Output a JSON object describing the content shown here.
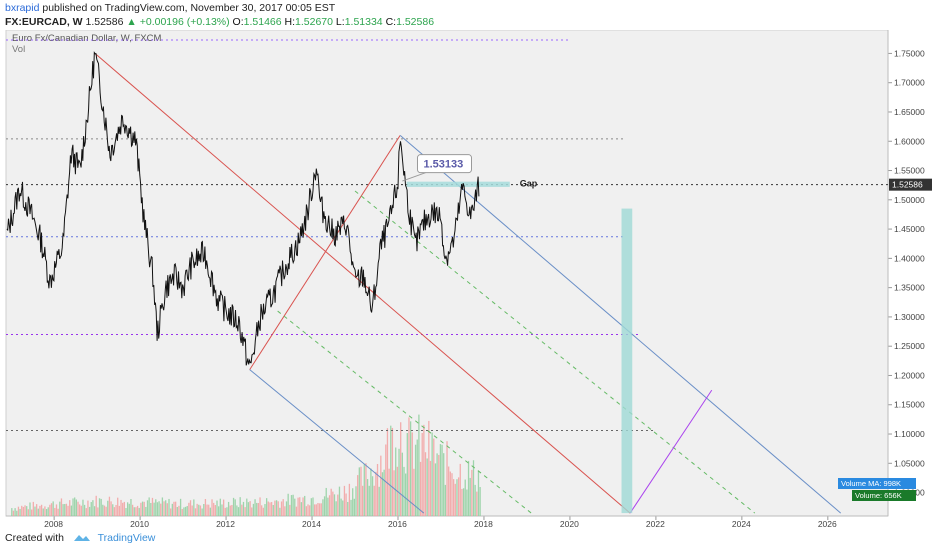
{
  "header": {
    "author": "bxrapid",
    "published": "published on TradingView.com, November 30, 2017 00:05 EST",
    "symbol": "FX:EURCAD, W",
    "last": "1.52586",
    "change": "+0.00196 (+0.13%)",
    "o_label": "O:",
    "o_val": "1.51466",
    "h_label": "H:",
    "h_val": "1.52670",
    "l_label": "L:",
    "l_val": "1.51334",
    "c_label": "C:",
    "c_val": "1.52586"
  },
  "chart_data": {
    "type": "line",
    "instrument": "Euro Fx/Canadian Dollar, W, FXCM",
    "volume_label": "Vol",
    "ylim": [
      0.96,
      1.79
    ],
    "xlim": [
      2006.88,
      2027.4
    ],
    "yticks": [
      "1.75000",
      "1.70000",
      "1.65000",
      "1.60000",
      "1.55000",
      "1.50000",
      "1.45000",
      "1.40000",
      "1.35000",
      "1.30000",
      "1.25000",
      "1.20000",
      "1.15000",
      "1.10000",
      "1.05000",
      "1.00000"
    ],
    "xticks": [
      "2008",
      "2010",
      "2012",
      "2014",
      "2016",
      "2018",
      "2020",
      "2022",
      "2024",
      "2026"
    ],
    "price_series": {
      "x": [
        2006.9,
        2007.2,
        2007.5,
        2007.7,
        2007.9,
        2008.2,
        2008.4,
        2008.6,
        2008.8,
        2008.95,
        2009.1,
        2009.3,
        2009.6,
        2009.9,
        2010.1,
        2010.3,
        2010.4,
        2010.6,
        2010.8,
        2011.0,
        2011.2,
        2011.5,
        2011.8,
        2012.0,
        2012.3,
        2012.55,
        2012.8,
        2013.1,
        2013.4,
        2013.7,
        2013.9,
        2014.1,
        2014.2,
        2014.5,
        2014.8,
        2015.0,
        2015.2,
        2015.4,
        2015.6,
        2015.8,
        2016.0,
        2016.05,
        2016.2,
        2016.4,
        2016.6,
        2016.8,
        2017.0,
        2017.1,
        2017.3,
        2017.5,
        2017.7,
        2017.9
      ],
      "y": [
        1.44,
        1.52,
        1.47,
        1.43,
        1.36,
        1.42,
        1.58,
        1.55,
        1.66,
        1.75,
        1.68,
        1.58,
        1.64,
        1.6,
        1.46,
        1.37,
        1.27,
        1.35,
        1.37,
        1.35,
        1.39,
        1.41,
        1.33,
        1.31,
        1.29,
        1.21,
        1.3,
        1.34,
        1.39,
        1.43,
        1.48,
        1.56,
        1.49,
        1.44,
        1.46,
        1.36,
        1.37,
        1.31,
        1.42,
        1.46,
        1.53,
        1.61,
        1.51,
        1.42,
        1.46,
        1.48,
        1.47,
        1.4,
        1.43,
        1.52,
        1.47,
        1.53
      ]
    },
    "volume_series": {
      "x": [
        2007.0,
        2008.0,
        2009.0,
        2010.0,
        2011.0,
        2012.0,
        2013.0,
        2014.0,
        2014.8,
        2015.2,
        2015.6,
        2016.0,
        2016.2,
        2016.6,
        2017.0,
        2017.4,
        2017.8
      ],
      "values": [
        0.08,
        0.12,
        0.15,
        0.14,
        0.12,
        0.13,
        0.14,
        0.18,
        0.25,
        0.38,
        0.55,
        0.9,
        0.7,
        0.72,
        0.55,
        0.45,
        0.4
      ]
    },
    "horizontal_lines": [
      {
        "y": 1.773,
        "color": "#9a66ff",
        "style": "dotted",
        "x_end": 2020.0
      },
      {
        "y": 1.604,
        "color": "#888888",
        "style": "dotted",
        "x_end": 2021.3
      },
      {
        "y": 1.52586,
        "color": "#333333",
        "style": "dotted",
        "x_end": 2027.4
      },
      {
        "y": 1.437,
        "color": "#6677dd",
        "style": "dotted",
        "x_end": 2021.3
      },
      {
        "y": 1.27,
        "color": "#9933ee",
        "style": "dotted",
        "x_end": 2021.6
      },
      {
        "y": 1.106,
        "color": "#666666",
        "style": "dotted",
        "x_end": 2022.0
      }
    ],
    "trend_lines": [
      {
        "x1": 2008.95,
        "y1": 1.75,
        "x2": 2021.4,
        "y2": 0.965,
        "color": "#d9534f",
        "style": "solid"
      },
      {
        "x1": 2012.55,
        "y1": 1.21,
        "x2": 2016.05,
        "y2": 1.61,
        "color": "#d9534f",
        "style": "solid"
      },
      {
        "x1": 2016.05,
        "y1": 1.61,
        "x2": 2026.3,
        "y2": 0.965,
        "color": "#6a8fc7",
        "style": "solid"
      },
      {
        "x1": 2012.55,
        "y1": 1.21,
        "x2": 2016.6,
        "y2": 0.965,
        "color": "#6a8fc7",
        "style": "solid"
      },
      {
        "x1": 2015.0,
        "y1": 1.515,
        "x2": 2024.3,
        "y2": 0.965,
        "color": "#66bb66",
        "style": "dashed"
      },
      {
        "x1": 2013.2,
        "y1": 1.31,
        "x2": 2019.1,
        "y2": 0.965,
        "color": "#66bb66",
        "style": "dashed"
      },
      {
        "x1": 2021.4,
        "y1": 0.965,
        "x2": 2023.3,
        "y2": 1.175,
        "color": "#aa44ee",
        "style": "solid"
      }
    ],
    "gap_box": {
      "x1": 2016.2,
      "x2": 2018.6,
      "y1": 1.522,
      "y2": 1.531,
      "label": "Gap"
    },
    "projection_bar": {
      "x1": 2021.2,
      "x2": 2021.45,
      "y_top": 1.485,
      "y_bottom": 0.965
    },
    "callout": {
      "text": "1.53133",
      "x": 2016.5,
      "y": 1.56
    },
    "last_price_tag": "1.52586",
    "volume_ma_tag": "Volume MA: 998K",
    "volume_tag": "Volume: 656K",
    "colors": {
      "price": "#111111",
      "volume_up": "#8fcf9f",
      "volume_down": "#f2a0a0",
      "last_tag_bg": "#333333",
      "vol_ma_bg": "#2a8ae0",
      "vol_bg": "#1a7a2a",
      "background": "#f0f0f0"
    }
  },
  "footer": {
    "created_with": "Created with",
    "brand": "TradingView"
  }
}
